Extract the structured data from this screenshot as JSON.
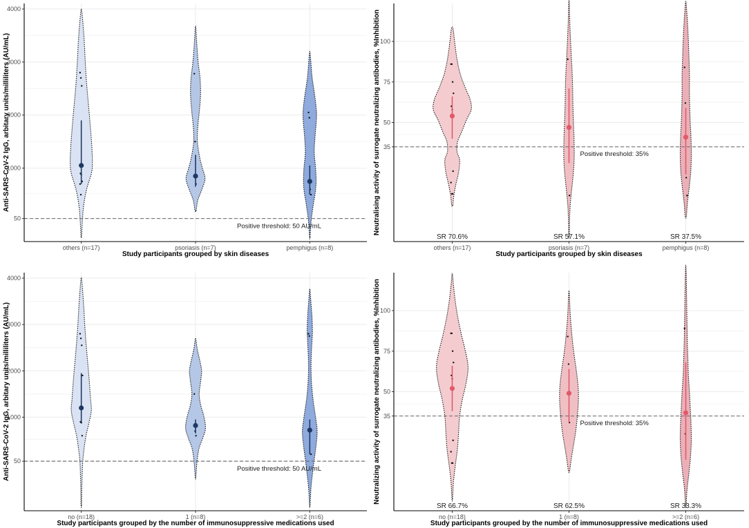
{
  "figure": {
    "panels": 4
  },
  "chart_data": [
    {
      "id": "A",
      "type": "violin",
      "title": "",
      "xlabel": "Study participants grouped by skin diseases",
      "ylabel": "Anti-SARS-CoV-2 IgG, arbitary units/milliliters (AU/mL)",
      "ylim": [
        -280,
        4000
      ],
      "yticks": [
        50,
        1000,
        2000,
        3000,
        4000
      ],
      "categories": [
        "others (n=17)",
        "psoriasis (n=7)",
        "pemphigus (n=8)"
      ],
      "threshold": {
        "value": 50,
        "label": "Positive threshold: 50 AU/mL"
      },
      "colors": {
        "fills": [
          "#dae3f3",
          "#b4c7e7",
          "#8faadc"
        ],
        "point": "#1f3864"
      },
      "groups": [
        {
          "name": "others (n=17)",
          "min": -280,
          "max": 3980,
          "density": [
            [
              -280,
              0.01
            ],
            [
              0,
              0.04
            ],
            [
              300,
              0.09
            ],
            [
              600,
              0.2
            ],
            [
              900,
              0.38
            ],
            [
              1100,
              0.42
            ],
            [
              1400,
              0.4
            ],
            [
              1800,
              0.34
            ],
            [
              2200,
              0.27
            ],
            [
              2600,
              0.2
            ],
            [
              3000,
              0.15
            ],
            [
              3400,
              0.11
            ],
            [
              3800,
              0.05
            ],
            [
              3980,
              0.01
            ]
          ],
          "mean": 1050,
          "ci": [
            700,
            1900
          ],
          "points": [
            2800,
            2700,
            2550,
            1050,
            900,
            880,
            750,
            700,
            500
          ]
        },
        {
          "name": "psoriasis (n=7)",
          "min": 200,
          "max": 3650,
          "density": [
            [
              200,
              0.02
            ],
            [
              400,
              0.09
            ],
            [
              600,
              0.24
            ],
            [
              800,
              0.36
            ],
            [
              1000,
              0.26
            ],
            [
              1200,
              0.16
            ],
            [
              1500,
              0.07
            ],
            [
              1800,
              0.09
            ],
            [
              2100,
              0.15
            ],
            [
              2400,
              0.19
            ],
            [
              2700,
              0.17
            ],
            [
              3000,
              0.1
            ],
            [
              3400,
              0.04
            ],
            [
              3650,
              0.01
            ]
          ],
          "mean": 850,
          "ci": [
            650,
            1250
          ],
          "points": [
            2780,
            1500,
            700
          ]
        },
        {
          "name": "pemphigus (n=8)",
          "min": -300,
          "max": 3180,
          "density": [
            [
              -300,
              0.01
            ],
            [
              0,
              0.05
            ],
            [
              300,
              0.13
            ],
            [
              550,
              0.21
            ],
            [
              750,
              0.24
            ],
            [
              1000,
              0.22
            ],
            [
              1300,
              0.17
            ],
            [
              1600,
              0.2
            ],
            [
              1900,
              0.25
            ],
            [
              2100,
              0.25
            ],
            [
              2400,
              0.18
            ],
            [
              2700,
              0.09
            ],
            [
              3000,
              0.04
            ],
            [
              3180,
              0.01
            ]
          ],
          "mean": 750,
          "ci": [
            500,
            1050
          ],
          "points": [
            2050,
            1950,
            600,
            500
          ]
        }
      ]
    },
    {
      "id": "B",
      "type": "violin",
      "title": "",
      "xlabel": "Study participants grouped by skin diseases",
      "ylabel": "Neutralising activity of surrogate neutralizing antibodies, %Inhibition",
      "ylim": [
        -20,
        120
      ],
      "yticks": [
        35,
        50,
        75,
        100
      ],
      "categories": [
        "others (n=17)",
        "psoriasis (n=7)",
        "pemphigus (n=8)"
      ],
      "threshold": {
        "value": 35,
        "label": "Positive threshold: 35%"
      },
      "subtitles": [
        "SR 70.6%",
        "SR 57.1%",
        "SR 37.5%"
      ],
      "colors": {
        "fills": [
          "#f4cccf",
          "#f0bfc4",
          "#ebb0b7"
        ],
        "point": "#e05a6b"
      },
      "groups": [
        {
          "name": "others (n=17)",
          "min": -1,
          "max": 108,
          "density": [
            [
              -1,
              0.02
            ],
            [
              5,
              0.06
            ],
            [
              12,
              0.14
            ],
            [
              20,
              0.25
            ],
            [
              27,
              0.28
            ],
            [
              32,
              0.18
            ],
            [
              38,
              0.2
            ],
            [
              44,
              0.35
            ],
            [
              52,
              0.55
            ],
            [
              58,
              0.72
            ],
            [
              64,
              0.68
            ],
            [
              72,
              0.48
            ],
            [
              80,
              0.3
            ],
            [
              90,
              0.17
            ],
            [
              100,
              0.09
            ],
            [
              108,
              0.03
            ]
          ],
          "mean": 54,
          "ci": [
            40,
            66
          ],
          "points": [
            86,
            86,
            75,
            68,
            60,
            58,
            20,
            13,
            6,
            6
          ]
        },
        {
          "name": "psoriasis (n=7)",
          "min": -20,
          "max": 124,
          "density": [
            [
              -20,
              0.01
            ],
            [
              -10,
              0.02
            ],
            [
              0,
              0.05
            ],
            [
              10,
              0.11
            ],
            [
              20,
              0.17
            ],
            [
              30,
              0.2
            ],
            [
              40,
              0.19
            ],
            [
              50,
              0.17
            ],
            [
              60,
              0.15
            ],
            [
              70,
              0.14
            ],
            [
              80,
              0.12
            ],
            [
              90,
              0.09
            ],
            [
              100,
              0.06
            ],
            [
              112,
              0.03
            ],
            [
              124,
              0.01
            ]
          ],
          "mean": 47,
          "ci": [
            25,
            71
          ],
          "points": [
            89,
            48,
            5
          ]
        },
        {
          "name": "pemphigus (n=8)",
          "min": -8,
          "max": 124,
          "density": [
            [
              -8,
              0.02
            ],
            [
              0,
              0.06
            ],
            [
              10,
              0.13
            ],
            [
              20,
              0.19
            ],
            [
              30,
              0.21
            ],
            [
              40,
              0.2
            ],
            [
              50,
              0.17
            ],
            [
              60,
              0.15
            ],
            [
              70,
              0.14
            ],
            [
              80,
              0.14
            ],
            [
              90,
              0.12
            ],
            [
              100,
              0.1
            ],
            [
              110,
              0.07
            ],
            [
              118,
              0.04
            ],
            [
              124,
              0.01
            ]
          ],
          "mean": 41,
          "ci": [
            18,
            59
          ],
          "points": [
            84,
            62,
            16,
            5
          ]
        }
      ]
    },
    {
      "id": "C",
      "type": "violin",
      "title": "",
      "xlabel": "Study participants grouped by the number of immunosuppressive medications used",
      "ylabel": "Anti-SARS-CoV-2 IgG, arbitary units/milliliters (AU/mL)",
      "ylim": [
        -900,
        4000
      ],
      "yticks": [
        50,
        1000,
        2000,
        3000,
        4000
      ],
      "categories": [
        "no (n=18)",
        "1 (n=8)",
        ">=2 (n=6)"
      ],
      "threshold": {
        "value": 50,
        "label": "Positive threshold: 50 AU/mL"
      },
      "colors": {
        "fills": [
          "#dae3f3",
          "#b4c7e7",
          "#8faadc"
        ],
        "point": "#1f3864"
      },
      "groups": [
        {
          "name": "no (n=18)",
          "min": -900,
          "max": 3990,
          "density": [
            [
              -900,
              0.01
            ],
            [
              -500,
              0.02
            ],
            [
              0,
              0.05
            ],
            [
              300,
              0.1
            ],
            [
              600,
              0.18
            ],
            [
              900,
              0.3
            ],
            [
              1150,
              0.38
            ],
            [
              1400,
              0.35
            ],
            [
              1800,
              0.3
            ],
            [
              2200,
              0.24
            ],
            [
              2600,
              0.18
            ],
            [
              3000,
              0.13
            ],
            [
              3400,
              0.09
            ],
            [
              3800,
              0.04
            ],
            [
              3990,
              0.01
            ]
          ],
          "mean": 1200,
          "ci": [
            900,
            1950
          ],
          "points": [
            2800,
            2700,
            2550,
            1900,
            900,
            880,
            600
          ]
        },
        {
          "name": "1 (n=8)",
          "min": -300,
          "max": 2680,
          "density": [
            [
              -300,
              0.01
            ],
            [
              0,
              0.05
            ],
            [
              300,
              0.12
            ],
            [
              500,
              0.24
            ],
            [
              700,
              0.36
            ],
            [
              850,
              0.37
            ],
            [
              1050,
              0.3
            ],
            [
              1250,
              0.2
            ],
            [
              1500,
              0.14
            ],
            [
              1800,
              0.2
            ],
            [
              2000,
              0.23
            ],
            [
              2200,
              0.17
            ],
            [
              2450,
              0.07
            ],
            [
              2680,
              0.01
            ]
          ],
          "mean": 820,
          "ci": [
            650,
            950
          ],
          "points": [
            1500,
            700,
            600
          ]
        },
        {
          "name": ">=2 (n=6)",
          "min": -900,
          "max": 3740,
          "density": [
            [
              -900,
              0.01
            ],
            [
              -500,
              0.05
            ],
            [
              0,
              0.15
            ],
            [
              400,
              0.24
            ],
            [
              700,
              0.28
            ],
            [
              1000,
              0.22
            ],
            [
              1400,
              0.12
            ],
            [
              1800,
              0.06
            ],
            [
              2200,
              0.05
            ],
            [
              2600,
              0.08
            ],
            [
              2850,
              0.1
            ],
            [
              3200,
              0.08
            ],
            [
              3500,
              0.04
            ],
            [
              3740,
              0.01
            ]
          ],
          "mean": 720,
          "ci": [
            200,
            950
          ],
          "points": [
            2800,
            2750,
            700,
            200
          ]
        }
      ]
    },
    {
      "id": "D",
      "type": "violin",
      "title": "",
      "xlabel": "Study participants grouped by the number of immunosuppressive medications used",
      "ylabel": "Neutralizing activity of surrogate neutralizing antibodies, %Inhibition",
      "ylim": [
        -20,
        120
      ],
      "yticks": [
        35,
        50,
        75,
        100
      ],
      "categories": [
        "no (n=18)",
        "1 (n=8)",
        ">=2 (n=6)"
      ],
      "threshold": {
        "value": 35,
        "label": "Positive threshold: 35%"
      },
      "subtitles": [
        "SR 66.7%",
        "SR 62.5%",
        "SR 33.3%"
      ],
      "colors": {
        "fills": [
          "#f4cccf",
          "#f0bfc4",
          "#ebb0b7"
        ],
        "point": "#e05a6b"
      },
      "groups": [
        {
          "name": "no (n=18)",
          "min": -16,
          "max": 122,
          "density": [
            [
              -16,
              0.01
            ],
            [
              -5,
              0.05
            ],
            [
              5,
              0.12
            ],
            [
              15,
              0.2
            ],
            [
              25,
              0.24
            ],
            [
              35,
              0.28
            ],
            [
              45,
              0.38
            ],
            [
              55,
              0.52
            ],
            [
              65,
              0.6
            ],
            [
              75,
              0.5
            ],
            [
              85,
              0.35
            ],
            [
              95,
              0.22
            ],
            [
              105,
              0.12
            ],
            [
              115,
              0.05
            ],
            [
              122,
              0.01
            ]
          ],
          "mean": 52,
          "ci": [
            38,
            66
          ],
          "points": [
            86,
            86,
            75,
            68,
            60,
            58,
            20,
            13,
            6,
            6
          ]
        },
        {
          "name": "1 (n=8)",
          "min": 1,
          "max": 111,
          "density": [
            [
              1,
              0.02
            ],
            [
              8,
              0.08
            ],
            [
              16,
              0.16
            ],
            [
              24,
              0.24
            ],
            [
              32,
              0.3
            ],
            [
              40,
              0.34
            ],
            [
              48,
              0.36
            ],
            [
              56,
              0.33
            ],
            [
              64,
              0.27
            ],
            [
              72,
              0.2
            ],
            [
              80,
              0.14
            ],
            [
              90,
              0.08
            ],
            [
              100,
              0.04
            ],
            [
              111,
              0.01
            ]
          ],
          "mean": 49,
          "ci": [
            31,
            64
          ],
          "points": [
            84,
            67,
            31
          ]
        },
        {
          "name": ">=2 (n=6)",
          "min": -20,
          "max": 126,
          "density": [
            [
              -20,
              0.01
            ],
            [
              -10,
              0.05
            ],
            [
              0,
              0.12
            ],
            [
              10,
              0.18
            ],
            [
              20,
              0.21
            ],
            [
              30,
              0.2
            ],
            [
              40,
              0.17
            ],
            [
              50,
              0.14
            ],
            [
              60,
              0.1
            ],
            [
              70,
              0.08
            ],
            [
              80,
              0.06
            ],
            [
              90,
              0.05
            ],
            [
              100,
              0.04
            ],
            [
              110,
              0.03
            ],
            [
              126,
              0.01
            ]
          ],
          "mean": 37,
          "ci": [
            8,
            68
          ],
          "points": [
            89,
            24
          ]
        }
      ]
    }
  ]
}
